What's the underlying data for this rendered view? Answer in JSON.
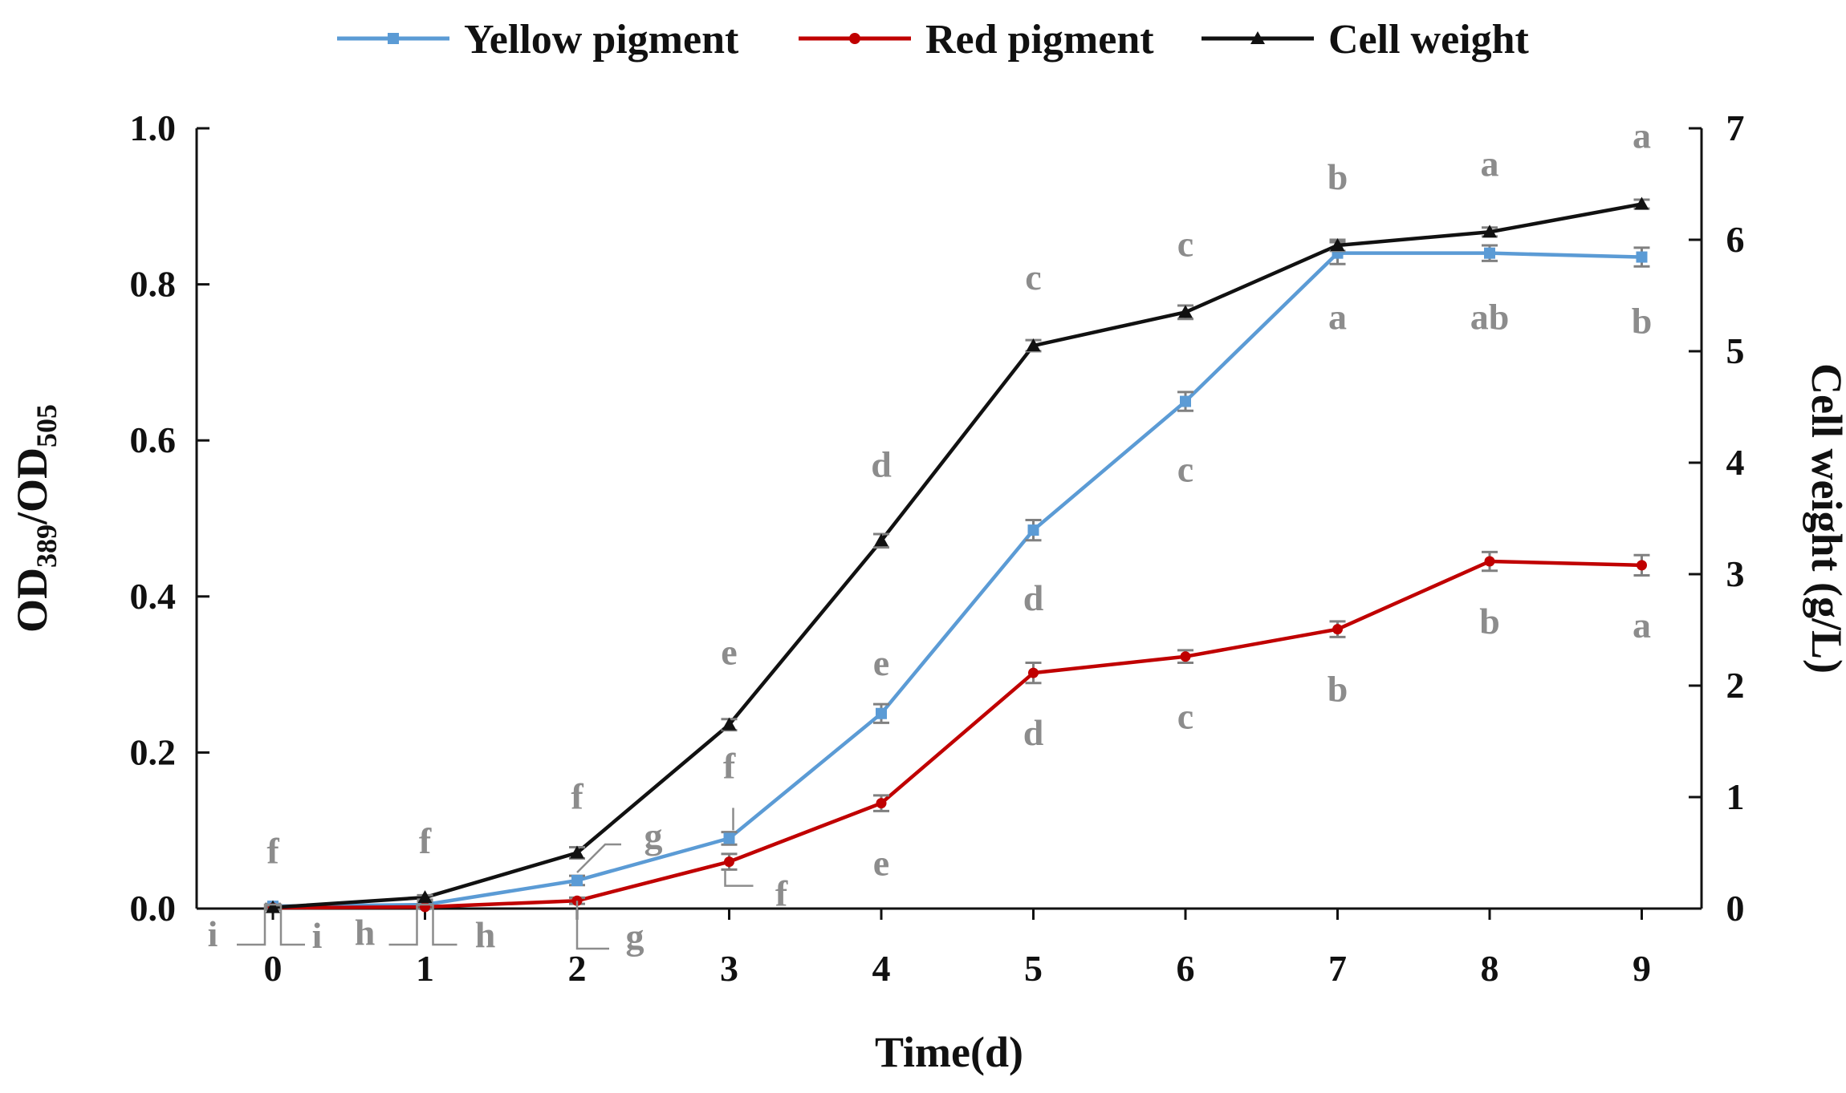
{
  "chart_data": {
    "type": "line",
    "title": "",
    "xlabel": "Time(d)",
    "ylabel": {
      "prefix": "OD",
      "sub1": "389",
      "mid": "/OD",
      "sub2": "505"
    },
    "y2label": "Cell weight (g/L)",
    "x": [
      0,
      1,
      2,
      3,
      4,
      5,
      6,
      7,
      8,
      9
    ],
    "x_tick_labels": [
      "0",
      "1",
      "2",
      "3",
      "4",
      "5",
      "6",
      "7",
      "8",
      "9"
    ],
    "ylim": [
      0,
      1.0
    ],
    "y_ticks": [
      0.0,
      0.2,
      0.4,
      0.6,
      0.8,
      1.0
    ],
    "y_tick_labels": [
      "0.0",
      "0.2",
      "0.4",
      "0.6",
      "0.8",
      "1.0"
    ],
    "y2lim": [
      0,
      7
    ],
    "y2_ticks": [
      0,
      1,
      2,
      3,
      4,
      5,
      6,
      7
    ],
    "y2_tick_labels": [
      "0",
      "1",
      "2",
      "3",
      "4",
      "5",
      "6",
      "7"
    ],
    "legend_position": "top-center",
    "series": [
      {
        "name": "Yellow pigment",
        "axis": "left",
        "color": "#5b9bd5",
        "marker": "square",
        "values": [
          0.003,
          0.005,
          0.036,
          0.09,
          0.25,
          0.485,
          0.65,
          0.84,
          0.84,
          0.835
        ],
        "errors": [
          0.003,
          0.004,
          0.006,
          0.008,
          0.012,
          0.013,
          0.012,
          0.014,
          0.01,
          0.012
        ],
        "letters": [
          "i",
          "h",
          "g",
          "f",
          "e",
          "d",
          "c",
          "a",
          "ab",
          "b"
        ]
      },
      {
        "name": "Red pigment",
        "axis": "left",
        "color": "#c00000",
        "marker": "circle",
        "values": [
          0.001,
          0.002,
          0.01,
          0.06,
          0.135,
          0.302,
          0.323,
          0.358,
          0.445,
          0.44
        ],
        "errors": [
          0.002,
          0.002,
          0.004,
          0.01,
          0.01,
          0.013,
          0.008,
          0.01,
          0.012,
          0.013
        ],
        "letters": [
          "i",
          "h",
          "g",
          "f",
          "e",
          "d",
          "c",
          "b",
          "b",
          "a"
        ]
      },
      {
        "name": "Cell weight",
        "axis": "right",
        "color": "#111111",
        "marker": "triangle",
        "values": [
          0.01,
          0.1,
          0.5,
          1.65,
          3.3,
          5.05,
          5.35,
          5.95,
          6.07,
          6.32
        ],
        "errors": [
          0.02,
          0.02,
          0.05,
          0.05,
          0.06,
          0.05,
          0.06,
          0.05,
          0.04,
          0.04
        ],
        "letters": [
          "f",
          "f",
          "f",
          "e",
          "d",
          "c",
          "c",
          "b",
          "a",
          "a"
        ]
      }
    ]
  }
}
